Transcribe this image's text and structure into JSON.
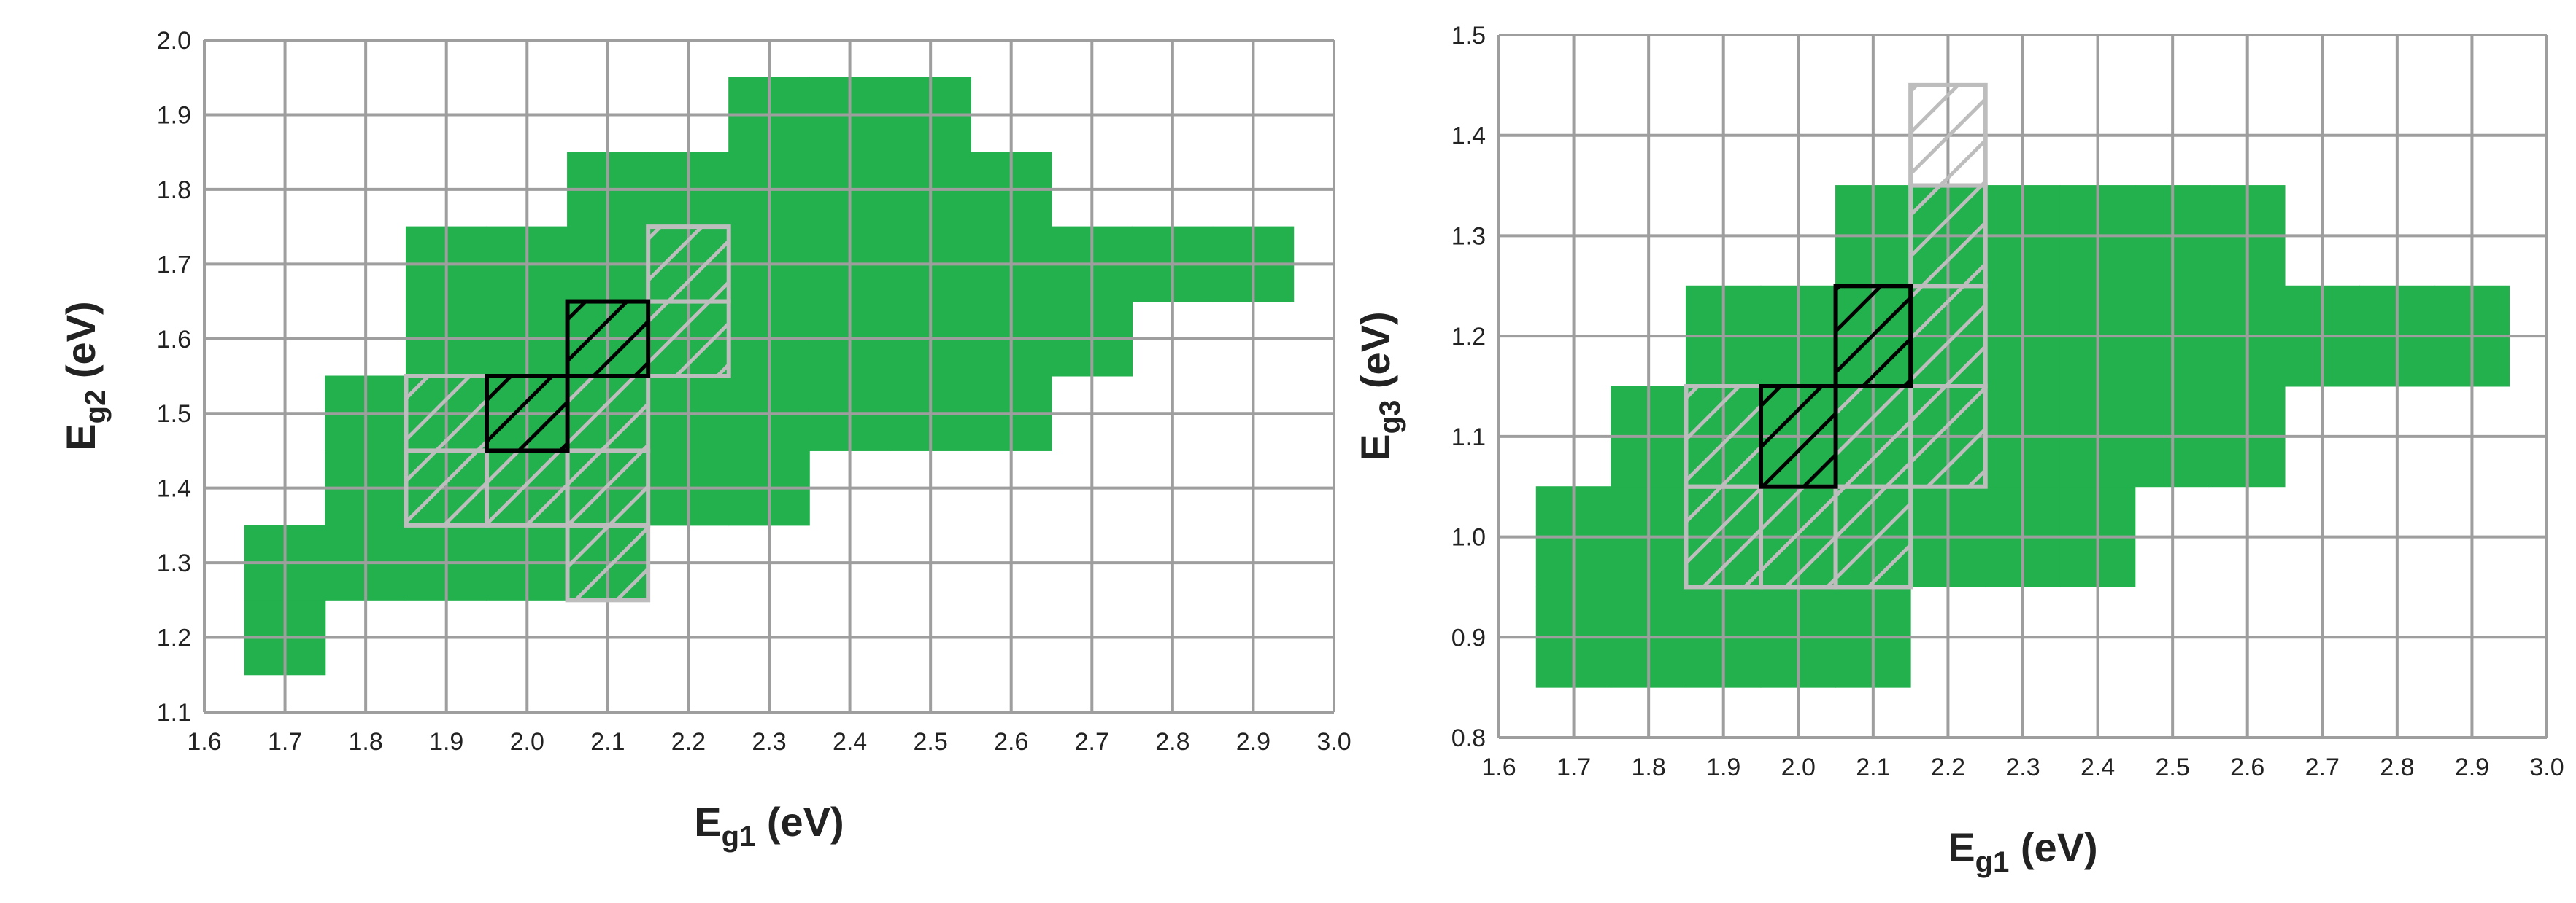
{
  "chart_data": [
    {
      "type": "heatmap",
      "xlabel": {
        "main": "E",
        "sub": "g1",
        "unit": " (eV)"
      },
      "ylabel": {
        "main": "E",
        "sub": "g2",
        "unit": " (eV)"
      },
      "xlim": [
        1.6,
        3.0
      ],
      "ylim": [
        1.1,
        2.0
      ],
      "x_ticks": [
        "1.6",
        "1.7",
        "1.8",
        "1.9",
        "2.0",
        "2.1",
        "2.2",
        "2.3",
        "2.4",
        "2.5",
        "2.6",
        "2.7",
        "2.8",
        "2.9",
        "3.0"
      ],
      "y_ticks": [
        "1.1",
        "1.2",
        "1.3",
        "1.4",
        "1.5",
        "1.6",
        "1.7",
        "1.8",
        "1.9",
        "2.0"
      ],
      "grid": true,
      "cell_size": {
        "x": 0.1,
        "y": 0.1
      },
      "colors": {
        "region": "#22b14c",
        "grid": "#9e9e9e",
        "hatch_light": "#bdbdbd",
        "hatch_dark": "#000000"
      },
      "region": [
        {
          "y": 1.2,
          "x": [
            1.7
          ]
        },
        {
          "y": 1.3,
          "x": [
            1.7,
            1.8,
            1.9,
            2.0,
            2.1
          ]
        },
        {
          "y": 1.4,
          "x": [
            1.8,
            1.9,
            2.0,
            2.1,
            2.2,
            2.3
          ]
        },
        {
          "y": 1.5,
          "x": [
            1.8,
            1.9,
            2.0,
            2.1,
            2.2,
            2.3,
            2.4,
            2.5,
            2.6
          ]
        },
        {
          "y": 1.6,
          "x": [
            1.9,
            2.0,
            2.1,
            2.2,
            2.3,
            2.4,
            2.5,
            2.6,
            2.7
          ]
        },
        {
          "y": 1.7,
          "x": [
            1.9,
            2.0,
            2.1,
            2.2,
            2.3,
            2.4,
            2.5,
            2.6,
            2.7,
            2.8,
            2.9
          ]
        },
        {
          "y": 1.8,
          "x": [
            2.1,
            2.2,
            2.3,
            2.4,
            2.5,
            2.6
          ]
        },
        {
          "y": 1.9,
          "x": [
            2.3,
            2.4,
            2.5
          ]
        }
      ],
      "hatched_light": [
        {
          "y": 1.3,
          "x": [
            2.1
          ]
        },
        {
          "y": 1.4,
          "x": [
            1.9,
            2.0,
            2.1
          ]
        },
        {
          "y": 1.5,
          "x": [
            1.9,
            2.1
          ]
        },
        {
          "y": 1.6,
          "x": [
            2.2
          ]
        },
        {
          "y": 1.7,
          "x": [
            2.2
          ]
        }
      ],
      "hatched_dark": [
        {
          "y": 1.5,
          "x": [
            2.0
          ]
        },
        {
          "y": 1.6,
          "x": [
            2.1
          ]
        }
      ]
    },
    {
      "type": "heatmap",
      "xlabel": {
        "main": "E",
        "sub": "g1",
        "unit": " (eV)"
      },
      "ylabel": {
        "main": "E",
        "sub": "g3",
        "unit": " (eV)"
      },
      "xlim": [
        1.6,
        3.0
      ],
      "ylim": [
        0.8,
        1.5
      ],
      "x_ticks": [
        "1.6",
        "1.7",
        "1.8",
        "1.9",
        "2.0",
        "2.1",
        "2.2",
        "2.3",
        "2.4",
        "2.5",
        "2.6",
        "2.7",
        "2.8",
        "2.9",
        "3.0"
      ],
      "y_ticks": [
        "0.8",
        "0.9",
        "1.0",
        "1.1",
        "1.2",
        "1.3",
        "1.4",
        "1.5"
      ],
      "grid": true,
      "cell_size": {
        "x": 0.1,
        "y": 0.1
      },
      "colors": {
        "region": "#22b14c",
        "grid": "#9e9e9e",
        "hatch_light": "#bdbdbd",
        "hatch_dark": "#000000"
      },
      "region": [
        {
          "y": 0.9,
          "x": [
            1.7,
            1.8,
            1.9,
            2.0,
            2.1
          ]
        },
        {
          "y": 1.0,
          "x": [
            1.7,
            1.8,
            1.9,
            2.0,
            2.1,
            2.2,
            2.3,
            2.4
          ]
        },
        {
          "y": 1.1,
          "x": [
            1.8,
            1.9,
            2.0,
            2.1,
            2.2,
            2.3,
            2.4,
            2.5,
            2.6
          ]
        },
        {
          "y": 1.2,
          "x": [
            1.9,
            2.0,
            2.1,
            2.2,
            2.3,
            2.4,
            2.5,
            2.6,
            2.7,
            2.8,
            2.9
          ]
        },
        {
          "y": 1.3,
          "x": [
            2.1,
            2.2,
            2.3,
            2.4,
            2.5,
            2.6
          ]
        }
      ],
      "hatched_light": [
        {
          "y": 1.0,
          "x": [
            1.9,
            2.0,
            2.1
          ]
        },
        {
          "y": 1.1,
          "x": [
            1.9,
            2.1,
            2.2
          ]
        },
        {
          "y": 1.2,
          "x": [
            2.2
          ]
        },
        {
          "y": 1.3,
          "x": [
            2.2
          ]
        },
        {
          "y": 1.4,
          "x": [
            2.2
          ]
        }
      ],
      "hatched_dark": [
        {
          "y": 1.1,
          "x": [
            2.0
          ]
        },
        {
          "y": 1.2,
          "x": [
            2.1
          ]
        }
      ]
    }
  ]
}
